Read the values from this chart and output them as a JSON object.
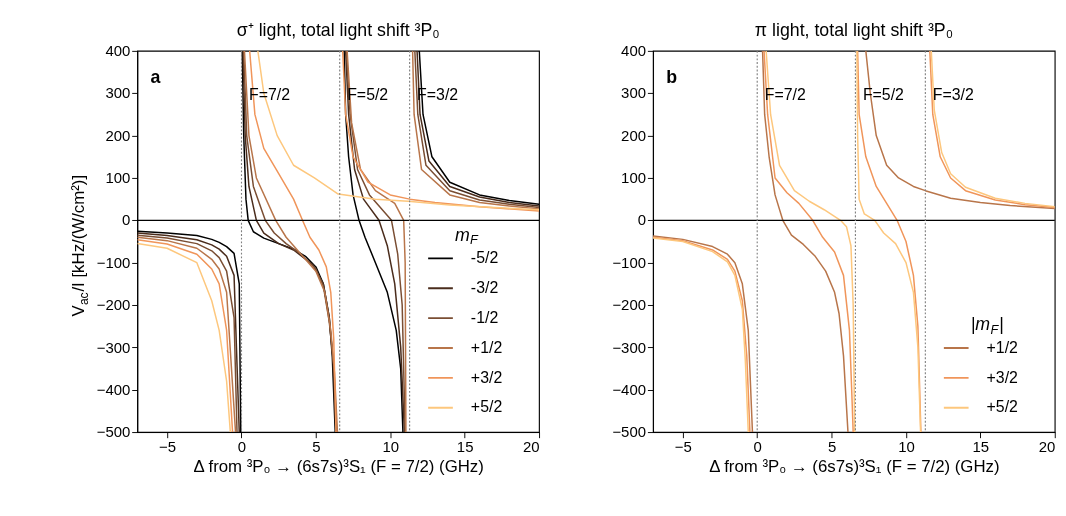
{
  "chart_data": [
    {
      "type": "line",
      "title": "σ⁺ light, total light shift ³P₀",
      "xlabel": "Δ from ³P₀ → (6s7s)³S₁ (F = 7/2) (GHz)",
      "ylabel": "V$_{ac}$/I [kHz/(W/cm²)]",
      "legend_title": "m$_{F}$",
      "legend": "bottom right",
      "grid": false,
      "line_style": "solid",
      "marker": "none",
      "xlim": [
        -7,
        20
      ],
      "xticks": [
        -5,
        0,
        5,
        10,
        15,
        20
      ],
      "ylim": [
        -500,
        400
      ],
      "yticks": [
        -500,
        -400,
        -300,
        -200,
        -100,
        0,
        100,
        200,
        300,
        400
      ],
      "annotations": [
        "a",
        "F=7/2",
        "F=5/2",
        "F=3/2"
      ],
      "ref_lines": [
        {
          "axis": "y",
          "value": 0,
          "color": "#000000",
          "line_style": "solid"
        },
        {
          "axis": "x",
          "value": 0,
          "color": "#808080",
          "line_style": "dotted"
        },
        {
          "axis": "x",
          "value": 6.6,
          "color": "#808080",
          "line_style": "dotted"
        },
        {
          "axis": "x",
          "value": 11.3,
          "color": "#808080",
          "line_style": "dotted"
        }
      ],
      "series": [
        {
          "name": "-5/2",
          "color": "#000000",
          "x": [
            -7,
            -5,
            -3,
            -2,
            -1.5,
            -1,
            -0.5,
            -0.15,
            -0.05,
            0,
            0.05,
            0.15,
            0.3,
            0.45,
            0.8,
            1.5,
            2.5,
            3.5,
            4.3,
            5,
            5.5,
            5.9,
            6.1,
            6.3,
            6.6,
            6.9,
            7.0,
            7.2,
            7.5,
            7.9,
            8.3,
            9,
            9.8,
            10.4,
            10.7,
            10.85,
            11.3,
            11.95,
            12.2,
            12.8,
            14,
            16,
            18,
            20
          ],
          "values": [
            -26,
            -30,
            -36,
            -45,
            -52,
            -62,
            -78,
            -150,
            -500,
            null,
            400,
            200,
            50,
            0,
            -27,
            -42,
            -55,
            -68,
            -85,
            -110,
            -150,
            -230,
            -320,
            -500,
            null,
            400,
            250,
            150,
            60,
            0,
            -40,
            -100,
            -170,
            -260,
            -350,
            -500,
            null,
            400,
            250,
            150,
            90,
            60,
            47,
            38
          ]
        },
        {
          "name": "-3/2",
          "color": "#4a2c1c",
          "x": [
            -7,
            -5,
            -3,
            -2,
            -1.5,
            -1,
            -0.5,
            -0.15,
            0,
            0.1,
            0.25,
            0.5,
            1,
            1.5,
            2.5,
            3.5,
            4.8,
            5.5,
            5.9,
            6.15,
            6.35,
            6.6,
            7.0,
            7.2,
            7.6,
            8.2,
            9.24,
            9.8,
            10.3,
            10.7,
            10.95,
            11.3,
            11.8,
            12,
            12.6,
            14,
            16,
            18,
            20
          ],
          "values": [
            -30,
            -36,
            -46,
            -58,
            -68,
            -85,
            -130,
            -500,
            null,
            400,
            200,
            80,
            0,
            -30,
            -55,
            -70,
            -105,
            -150,
            -230,
            -330,
            -500,
            null,
            400,
            250,
            120,
            50,
            0,
            -60,
            -150,
            -300,
            -500,
            null,
            400,
            250,
            140,
            80,
            55,
            42,
            34
          ]
        },
        {
          "name": "-1/2",
          "color": "#7a4e33",
          "x": [
            -7,
            -5,
            -3,
            -2,
            -1.5,
            -1,
            -0.5,
            -0.3,
            0,
            0.15,
            0.35,
            0.8,
            1.6,
            2.2,
            3,
            4,
            5,
            5.5,
            5.9,
            6.2,
            6.4,
            6.6,
            7.05,
            7.3,
            7.8,
            8.6,
            10.08,
            10.5,
            10.8,
            11.0,
            11.3,
            11.65,
            11.85,
            12.4,
            14,
            16,
            18,
            20
          ],
          "values": [
            -35,
            -42,
            -55,
            -72,
            -88,
            -120,
            -230,
            -500,
            null,
            400,
            200,
            80,
            0,
            -30,
            -55,
            -80,
            -115,
            -155,
            -240,
            -340,
            -500,
            null,
            400,
            250,
            120,
            60,
            0,
            -80,
            -200,
            -500,
            null,
            400,
            250,
            130,
            70,
            48,
            38,
            30
          ]
        },
        {
          "name": "+1/2",
          "color": "#b8754a",
          "x": [
            -7,
            -5,
            -3,
            -2,
            -1.5,
            -1,
            -0.4,
            0,
            0.2,
            0.5,
            1,
            2.3,
            3,
            4,
            5,
            5.6,
            6,
            6.25,
            6.45,
            6.6,
            7.1,
            7.4,
            8,
            9,
            10.3,
            10.9,
            11.0,
            11.05,
            11.3,
            11.5,
            11.6,
            12.1,
            14,
            16,
            18,
            20
          ],
          "values": [
            -40,
            -48,
            -66,
            -92,
            -115,
            -170,
            -500,
            null,
            400,
            200,
            100,
            0,
            -40,
            -80,
            -120,
            -170,
            -260,
            -360,
            -500,
            null,
            400,
            230,
            120,
            70,
            40,
            0,
            -100,
            -500,
            null,
            400,
            250,
            120,
            60,
            42,
            34,
            27
          ]
        },
        {
          "name": "+3/2",
          "color": "#f0955a",
          "x": [
            -7,
            -5,
            -3,
            -2,
            -1.5,
            -1,
            -0.6,
            0,
            0.55,
            0.9,
            1.5,
            2.5,
            3.5,
            4.1,
            4.6,
            5.2,
            5.7,
            6.0,
            6.2,
            6.35,
            6.6,
            6.8,
            7.0,
            7.5,
            8.5,
            10,
            11.3,
            13,
            16,
            20
          ],
          "values": [
            -46,
            -56,
            -80,
            -115,
            -150,
            -260,
            -500,
            null,
            400,
            250,
            170,
            110,
            50,
            0,
            -40,
            -70,
            -110,
            -170,
            -280,
            -500,
            null,
            400,
            250,
            150,
            90,
            60,
            50,
            42,
            32,
            22
          ]
        },
        {
          "name": "+5/2",
          "color": "#fdc77d",
          "x": [
            -7,
            -5,
            -3,
            -2,
            -1.5,
            -1,
            -0.75,
            0,
            1.1,
            1.5,
            2.4,
            3.5,
            4.9,
            6.5,
            9,
            11.2,
            14,
            17,
            20
          ],
          "values": [
            -55,
            -66,
            -100,
            -190,
            -260,
            -380,
            -500,
            null,
            400,
            300,
            200,
            130,
            100,
            62,
            50,
            45,
            36,
            30,
            25
          ]
        }
      ]
    },
    {
      "type": "line",
      "title": "π light, total light shift ³P₀",
      "xlabel": "Δ from ³P₀ → (6s7s)³S₁ (F = 7/2) (GHz)",
      "legend_title": "|m$_{F}$|",
      "legend": "bottom right",
      "grid": false,
      "line_style": "solid",
      "marker": "none",
      "xlim": [
        -7,
        20
      ],
      "xticks": [
        -5,
        0,
        5,
        10,
        15,
        20
      ],
      "ylim": [
        -500,
        400
      ],
      "yticks": [
        -500,
        -400,
        -300,
        -200,
        -100,
        0,
        100,
        200,
        300,
        400
      ],
      "annotations": [
        "b",
        "F=7/2",
        "F=5/2",
        "F=3/2"
      ],
      "ref_lines": [
        {
          "axis": "y",
          "value": 0,
          "color": "#000000",
          "line_style": "solid"
        },
        {
          "axis": "x",
          "value": 0,
          "color": "#808080",
          "line_style": "dotted"
        },
        {
          "axis": "x",
          "value": 6.6,
          "color": "#808080",
          "line_style": "dotted"
        },
        {
          "axis": "x",
          "value": 11.3,
          "color": "#808080",
          "line_style": "dotted"
        }
      ],
      "series": [
        {
          "name": "+1/2",
          "color": "#b8754a",
          "x": [
            -7,
            -5,
            -3,
            -2,
            -1.5,
            -1,
            -0.6,
            -0.32,
            0,
            0.36,
            0.5,
            0.8,
            1.2,
            1.72,
            2.3,
            3.1,
            3.9,
            4.6,
            5.2,
            5.5,
            5.8,
            6.1,
            6.6,
            7.3,
            7.6,
            8.0,
            8.7,
            9.5,
            10.5,
            11.3,
            13,
            15,
            17,
            20
          ],
          "values": [
            -37,
            -45,
            -62,
            -80,
            -100,
            -150,
            -260,
            -500,
            null,
            400,
            250,
            150,
            60,
            0,
            -35,
            -57,
            -85,
            -120,
            -170,
            -220,
            -320,
            -500,
            null,
            400,
            300,
            200,
            130,
            100,
            80,
            70,
            52,
            42,
            35,
            28
          ]
        },
        {
          "name": "+3/2",
          "color": "#f0955a",
          "x": [
            -7,
            -5,
            -3,
            -2,
            -1.5,
            -1,
            -0.7,
            -0.49,
            0,
            0.46,
            0.7,
            1.2,
            2.0,
            2.8,
            3.73,
            4.4,
            5.2,
            5.8,
            6.2,
            6.35,
            6.45,
            6.6,
            6.75,
            6.85,
            7.3,
            8.0,
            8.7,
            9.4,
            10,
            10.5,
            10.8,
            11.0,
            11.3,
            11.6,
            11.8,
            12.3,
            13,
            14,
            16,
            18,
            20
          ],
          "values": [
            -40,
            -48,
            -70,
            -92,
            -120,
            -190,
            -320,
            -500,
            null,
            400,
            250,
            100,
            65,
            40,
            0,
            -40,
            -75,
            -130,
            -260,
            -400,
            -500,
            null,
            400,
            250,
            150,
            80,
            40,
            0,
            -50,
            -130,
            -250,
            -500,
            null,
            400,
            250,
            150,
            100,
            70,
            48,
            37,
            30
          ]
        },
        {
          "name": "+5/2",
          "color": "#fdc77d",
          "x": [
            -7,
            -5,
            -3,
            -2,
            -1.5,
            -1,
            -0.8,
            -0.6,
            0,
            0.6,
            0.9,
            1.5,
            2.5,
            3.5,
            4.5,
            5.6,
            6.0,
            6.3,
            6.45,
            6.55,
            6.6,
            6.7,
            6.75,
            6.85,
            7.2,
            7.9,
            8.5,
            9.3,
            10.0,
            10.5,
            10.8,
            10.98,
            11.3,
            11.7,
            11.9,
            12.4,
            13,
            14,
            16,
            18,
            20
          ],
          "values": [
            -42,
            -50,
            -74,
            -98,
            -130,
            -210,
            -330,
            -500,
            null,
            400,
            250,
            130,
            70,
            45,
            25,
            0,
            -15,
            -60,
            -200,
            -500,
            null,
            400,
            200,
            50,
            15,
            0,
            -30,
            -55,
            -100,
            -170,
            -300,
            -500,
            null,
            400,
            260,
            160,
            110,
            78,
            52,
            40,
            32
          ]
        }
      ]
    }
  ]
}
